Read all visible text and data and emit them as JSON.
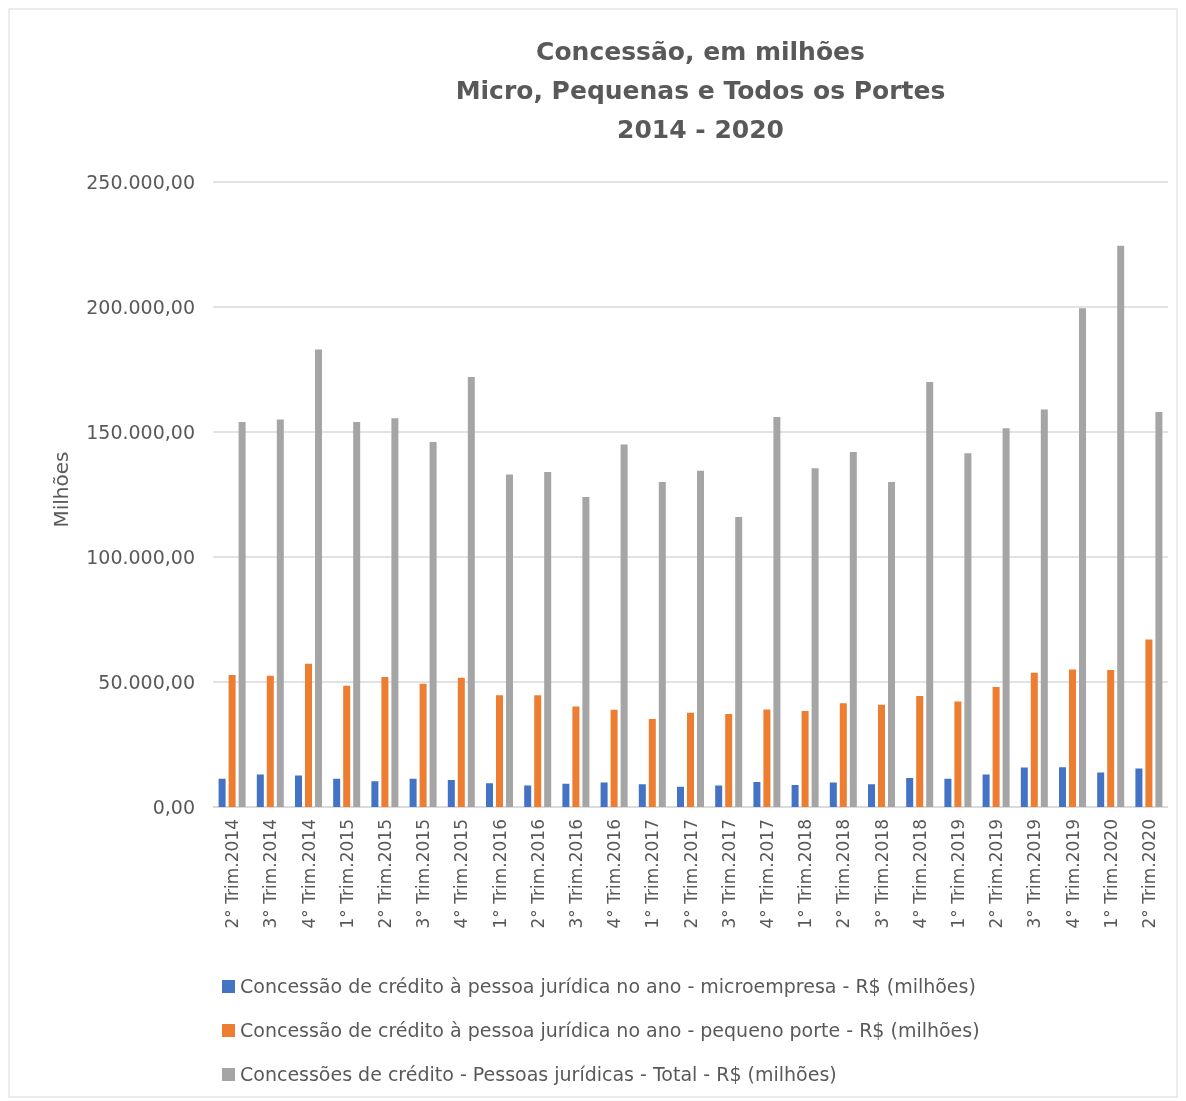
{
  "chart_data": {
    "type": "bar",
    "title": "Concessão, em milhões\nMicro, Pequenas e Todos os Portes\n2014 - 2020",
    "ylabel": "Milhões",
    "categories": [
      "2° Trim.2014",
      "3° Trim.2014",
      "4° Trim.2014",
      "1° Trim.2015",
      "2° Trim.2015",
      "3° Trim.2015",
      "4° Trim.2015",
      "1° Trim.2016",
      "2° Trim.2016",
      "3° Trim.2016",
      "4° Trim.2016",
      "1° Trim.2017",
      "2° Trim.2017",
      "3° Trim.2017",
      "4° Trim.2017",
      "1° Trim.2018",
      "2° Trim.2018",
      "3° Trim.2018",
      "4° Trim.2018",
      "1° Trim.2019",
      "2° Trim.2019",
      "3° Trim.2019",
      "4° Trim.2019",
      "1° Trim.2020",
      "2° Trim.2020"
    ],
    "series": [
      {
        "name": "Concessão de crédito à pessoa jurídica no ano - microempresa - R$ (milhões)",
        "color": "#4472c4",
        "values": [
          11300,
          13000,
          12600,
          11300,
          10300,
          11300,
          10800,
          9500,
          8600,
          9300,
          9800,
          9100,
          8100,
          8600,
          10000,
          8800,
          9800,
          9100,
          11600,
          11300,
          13000,
          15800,
          15900,
          13800,
          15400
        ]
      },
      {
        "name": "Concessão de crédito à pessoa jurídica no ano - pequeno porte - R$ (milhões)",
        "color": "#ed7d31",
        "values": [
          52800,
          52500,
          57300,
          48500,
          52000,
          49300,
          51700,
          44700,
          44700,
          40200,
          38900,
          35200,
          37700,
          37200,
          39000,
          38400,
          41500,
          40900,
          44400,
          42200,
          48000,
          53700,
          55000,
          54800,
          67000
        ]
      },
      {
        "name": "Concessões de crédito - Pessoas jurídicas - Total - R$ (milhões)",
        "color": "#a5a5a5",
        "values": [
          154000,
          155000,
          183000,
          154000,
          155500,
          146000,
          172000,
          133000,
          134000,
          124000,
          145000,
          130000,
          134500,
          116000,
          156000,
          135500,
          142000,
          130000,
          170000,
          141500,
          151500,
          159000,
          199500,
          224500,
          158000
        ]
      }
    ],
    "ylim": [
      0,
      250000
    ],
    "yticks": [
      {
        "value": 0,
        "label": "0,00"
      },
      {
        "value": 50000,
        "label": "50.000,00"
      },
      {
        "value": 100000,
        "label": "100.000,00"
      },
      {
        "value": 150000,
        "label": "150.000,00"
      },
      {
        "value": 200000,
        "label": "200.000,00"
      },
      {
        "value": 250000,
        "label": "250.000,00"
      }
    ],
    "grid": "y",
    "legend": "bottom"
  }
}
